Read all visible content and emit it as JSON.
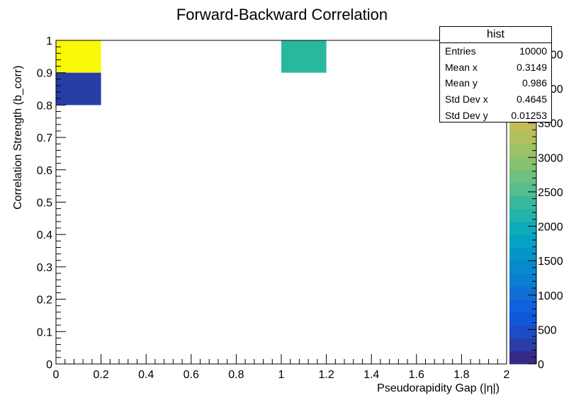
{
  "chart_data": {
    "type": "heatmap",
    "title": "Forward-Backward Correlation",
    "xlabel": "Pseudorapidity Gap (|η|)",
    "ylabel": "Correlation Strength (b_corr)",
    "xlim": [
      0,
      2
    ],
    "ylim": [
      0,
      1
    ],
    "x_tick_labels": [
      "0",
      "0.2",
      "0.4",
      "0.6",
      "0.8",
      "1",
      "1.2",
      "1.4",
      "1.6",
      "1.8",
      "2"
    ],
    "y_tick_labels": [
      "0",
      "0.1",
      "0.2",
      "0.3",
      "0.4",
      "0.5",
      "0.6",
      "0.7",
      "0.8",
      "0.9",
      "1"
    ],
    "cells": [
      {
        "x0": 0.0,
        "x1": 0.2,
        "y0": 0.9,
        "y1": 1.0,
        "value": 4500,
        "color": "#f9f906"
      },
      {
        "x0": 0.0,
        "x1": 0.2,
        "y0": 0.8,
        "y1": 0.9,
        "value": 400,
        "color": "#273ea8"
      },
      {
        "x0": 1.0,
        "x1": 1.2,
        "y0": 0.9,
        "y1": 1.0,
        "value": 2200,
        "color": "#2ab7a0"
      }
    ],
    "colorbar": {
      "range": [
        0,
        4700
      ],
      "tick_labels": [
        "0",
        "500",
        "1000",
        "1500",
        "2000",
        "2500",
        "3000",
        "3500",
        "4000",
        "4500"
      ],
      "tick_values": [
        0,
        500,
        1000,
        1500,
        2000,
        2500,
        3000,
        3500,
        4000,
        4500
      ],
      "palette": [
        "#352a87",
        "#2b3da6",
        "#1e4cc6",
        "#1057d9",
        "#0f62dc",
        "#1170d6",
        "#0b7ed2",
        "#0689cd",
        "#0596c9",
        "#05a2c3",
        "#0eacba",
        "#24b3ab",
        "#3ab89c",
        "#55bd8e",
        "#6fc07f",
        "#87c171",
        "#9dc166",
        "#b1bf5e",
        "#c4bc58",
        "#d5b94f",
        "#e4ba45",
        "#f2c036",
        "#fbcc2a",
        "#fbe020",
        "#f9f906"
      ]
    }
  },
  "stats_box": {
    "title": "hist",
    "rows": [
      {
        "label": "Entries",
        "value": "10000"
      },
      {
        "label": "Mean x",
        "value": "0.3149"
      },
      {
        "label": "Mean y",
        "value": "0.986"
      },
      {
        "label": "Std Dev x",
        "value": "0.4645"
      },
      {
        "label": "Std Dev y",
        "value": "0.01253"
      }
    ]
  }
}
